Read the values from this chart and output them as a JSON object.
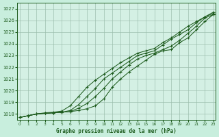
{
  "title": "Graphe pression niveau de la mer (hPa)",
  "background_color": "#c8eedd",
  "plot_bg_color": "#d4f0e4",
  "grid_color": "#99bbaa",
  "line_color": "#1e5c1e",
  "x_ticks": [
    0,
    1,
    2,
    3,
    4,
    5,
    6,
    7,
    8,
    9,
    10,
    11,
    12,
    13,
    14,
    15,
    16,
    17,
    18,
    19,
    20,
    21,
    22,
    23
  ],
  "ylim": [
    1017.5,
    1027.5
  ],
  "xlim": [
    -0.3,
    23.3
  ],
  "yticks": [
    1018,
    1019,
    1020,
    1021,
    1022,
    1023,
    1024,
    1025,
    1026,
    1027
  ],
  "series": [
    [
      1017.7,
      1017.85,
      1018.0,
      1018.05,
      1018.1,
      1018.15,
      1018.2,
      1018.3,
      1018.45,
      1018.7,
      1019.3,
      1020.3,
      1021.0,
      1021.6,
      1022.1,
      1022.6,
      1023.1,
      1023.4,
      1023.5,
      1024.1,
      1024.5,
      1025.2,
      1025.9,
      1026.5
    ],
    [
      1017.7,
      1017.85,
      1018.0,
      1018.05,
      1018.1,
      1018.15,
      1018.2,
      1018.5,
      1018.9,
      1019.5,
      1020.2,
      1021.0,
      1021.6,
      1022.2,
      1022.7,
      1023.0,
      1023.2,
      1023.5,
      1023.8,
      1024.3,
      1024.9,
      1025.5,
      1026.2,
      1026.5
    ],
    [
      1017.7,
      1017.85,
      1018.0,
      1018.05,
      1018.1,
      1018.15,
      1018.3,
      1018.8,
      1019.5,
      1020.2,
      1021.0,
      1021.5,
      1022.0,
      1022.5,
      1023.0,
      1023.2,
      1023.4,
      1023.9,
      1024.4,
      1024.8,
      1025.2,
      1025.8,
      1026.3,
      1026.6
    ],
    [
      1017.7,
      1017.85,
      1018.0,
      1018.1,
      1018.15,
      1018.25,
      1018.7,
      1019.5,
      1020.3,
      1020.9,
      1021.4,
      1021.9,
      1022.4,
      1022.8,
      1023.2,
      1023.4,
      1023.6,
      1024.1,
      1024.5,
      1025.0,
      1025.5,
      1025.9,
      1026.3,
      1026.7
    ]
  ]
}
